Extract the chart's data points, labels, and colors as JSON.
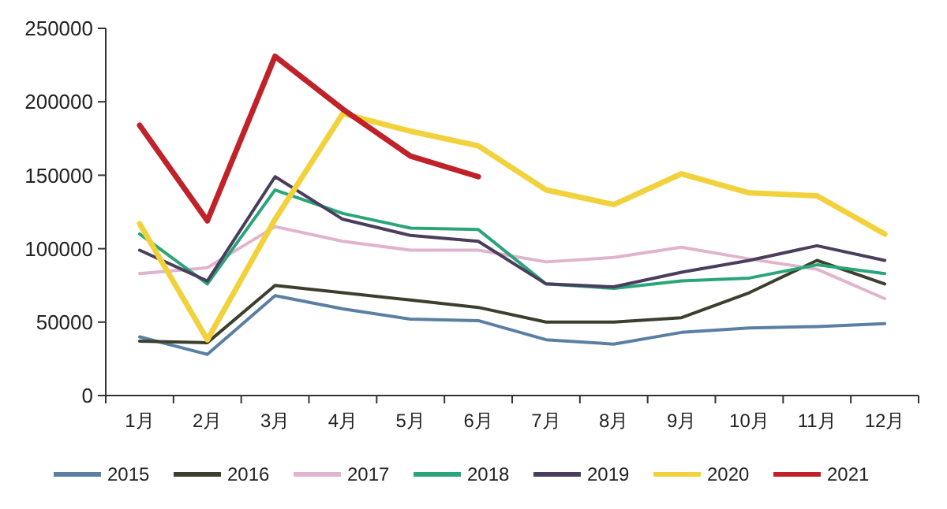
{
  "chart_data": {
    "type": "line",
    "categories": [
      "1月",
      "2月",
      "3月",
      "4月",
      "5月",
      "6月",
      "7月",
      "8月",
      "9月",
      "10月",
      "11月",
      "12月"
    ],
    "ylim": [
      0,
      250000
    ],
    "yticks": [
      0,
      50000,
      100000,
      150000,
      200000,
      250000
    ],
    "legend": "bottom",
    "grid": false,
    "series": [
      {
        "name": "2015",
        "color": "#5b7fa3",
        "values": [
          40000,
          28000,
          68000,
          59000,
          52000,
          51000,
          38000,
          35000,
          43000,
          46000,
          47000,
          49000
        ]
      },
      {
        "name": "2016",
        "color": "#3b3f2e",
        "values": [
          37000,
          36000,
          75000,
          70000,
          65000,
          60000,
          50000,
          50000,
          53000,
          70000,
          92000,
          76000
        ]
      },
      {
        "name": "2017",
        "color": "#e0b4cc",
        "values": [
          83000,
          87000,
          115000,
          105000,
          99000,
          99000,
          91000,
          94000,
          101000,
          93000,
          86000,
          66000
        ]
      },
      {
        "name": "2018",
        "color": "#2aa579",
        "values": [
          110000,
          76000,
          140000,
          124000,
          114000,
          113000,
          76000,
          73000,
          78000,
          80000,
          89000,
          83000
        ]
      },
      {
        "name": "2019",
        "color": "#4a3d5e",
        "values": [
          99000,
          78000,
          149000,
          120000,
          109000,
          105000,
          76000,
          74000,
          84000,
          92000,
          102000,
          92000
        ]
      },
      {
        "name": "2020",
        "color": "#f2d23c",
        "values": [
          117000,
          38000,
          120000,
          192000,
          180000,
          170000,
          140000,
          130000,
          151000,
          138000,
          136000,
          110000
        ]
      },
      {
        "name": "2021",
        "color": "#c0222a",
        "values": [
          184000,
          119000,
          231000,
          195000,
          163000,
          149000,
          null,
          null,
          null,
          null,
          null,
          null
        ]
      }
    ]
  }
}
